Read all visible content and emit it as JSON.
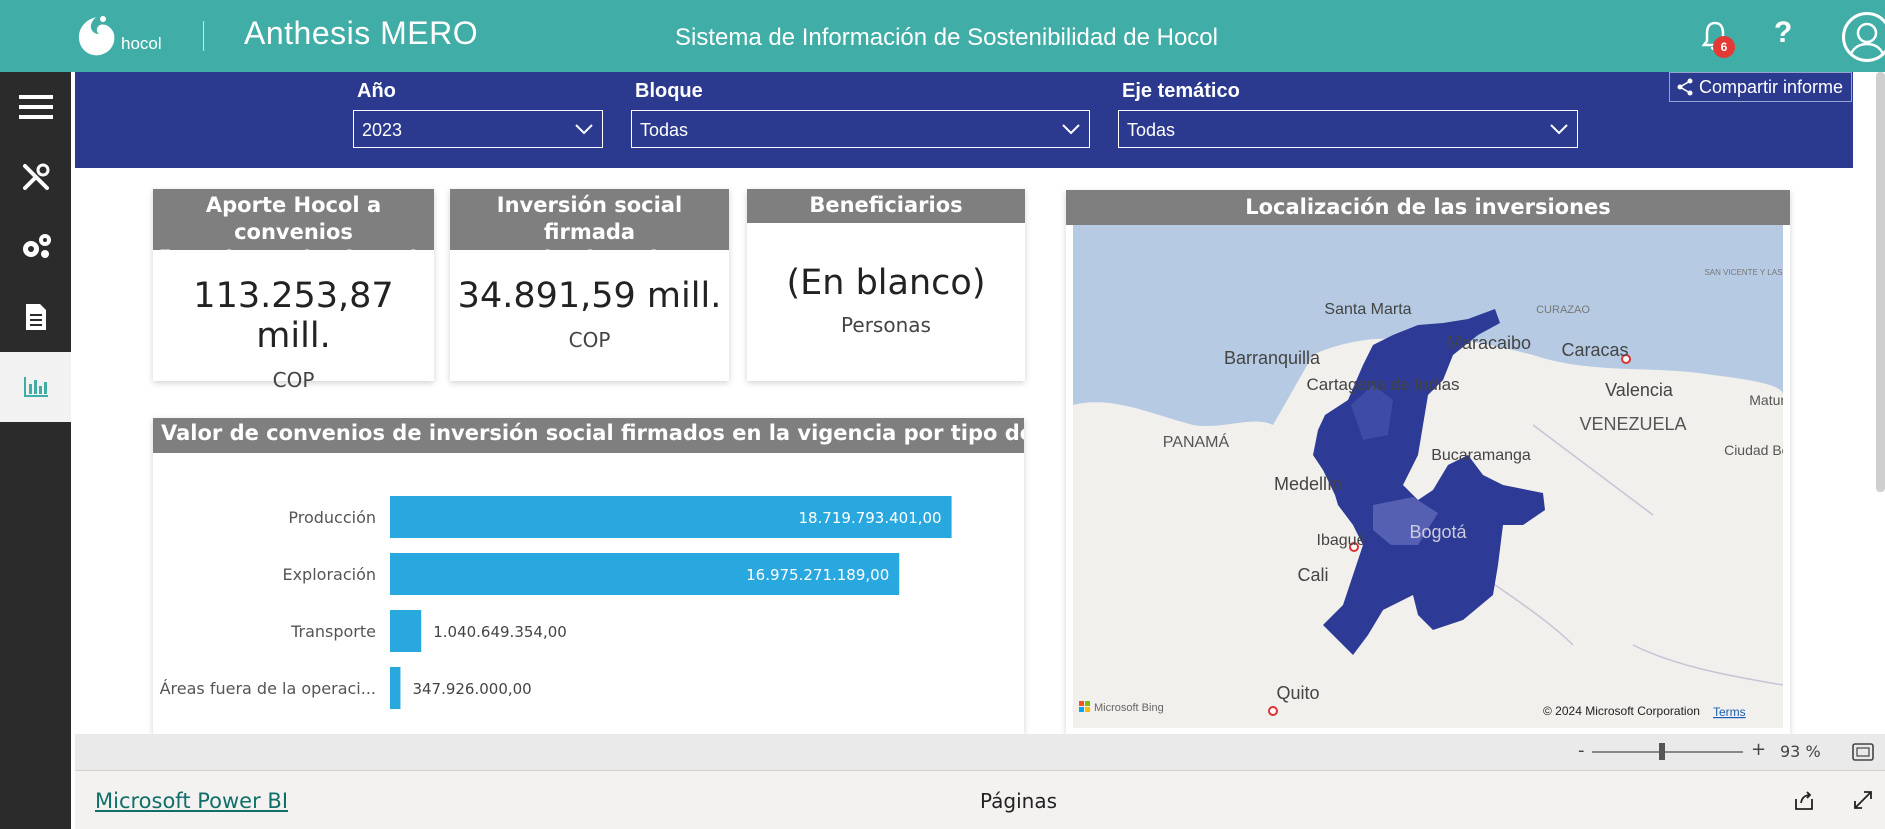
{
  "header": {
    "logo_text": "hocol",
    "brand": "Anthesis MERO",
    "title": "Sistema de Información de Sostenibilidad de Hocol",
    "notification_count": "6",
    "help_label": "?"
  },
  "nav": {
    "items": [
      "menu-icon",
      "tools-icon",
      "settings-icon",
      "report-icon",
      "chart-icon"
    ],
    "active": "chart-icon"
  },
  "filters": {
    "year": {
      "label": "Año",
      "value": "2023"
    },
    "block": {
      "label": "Bloque",
      "value": "Todas"
    },
    "axis": {
      "label": "Eje temático",
      "value": "Todas"
    },
    "share_label": "Compartir informe"
  },
  "kpis": {
    "aporte": {
      "title_line1": "Aporte Hocol a convenios",
      "title_line2": "firmados en la vigencia",
      "value": "113.253,87 mill.",
      "unit": "COP"
    },
    "inversion": {
      "title_line1": "Inversión social firmada",
      "title_line2": "en la vigencia",
      "value": "34.891,59 mill.",
      "unit": "COP"
    },
    "beneficiarios": {
      "title": "Beneficiarios",
      "value": "(En blanco)",
      "unit": "Personas"
    }
  },
  "chart_data": {
    "type": "bar",
    "orientation": "horizontal",
    "title": "Valor de convenios de inversión social firmados en la vigencia por tipo de proyecto",
    "categories": [
      "Producción",
      "Exploración",
      "Transporte",
      "Áreas fuera de la operaci..."
    ],
    "values": [
      18719793401,
      16975271189,
      1040649354,
      347926000
    ],
    "labels": [
      "18.719.793.401,00",
      "16.975.271.189,00",
      "1.040.649.354,00",
      "347.926.000,00"
    ],
    "bar_color": "#29a8e0",
    "xlim": [
      0,
      20000000000
    ]
  },
  "map": {
    "title": "Localización de las inversiones",
    "labels": [
      "Santa Marta",
      "Barranquilla",
      "Cartagena de Indias",
      "Maracaibo",
      "Caracas",
      "Valencia",
      "VENEZUELA",
      "PANAMÁ",
      "Bucaramanga",
      "Medellín",
      "Ibagué",
      "Bogotá",
      "Cali",
      "Quito",
      "CURAZAO",
      "Ciudad Bolívar",
      "Maturín",
      "SAN VICENTE Y LAS GRANADINAS"
    ],
    "attribution": "© 2024 Microsoft Corporation",
    "terms": "Terms",
    "bing": "Microsoft Bing"
  },
  "zoom": {
    "minus": "-",
    "plus": "+",
    "value": "93 %"
  },
  "footer": {
    "powerbi": "Microsoft Power BI",
    "pages": "Páginas"
  }
}
